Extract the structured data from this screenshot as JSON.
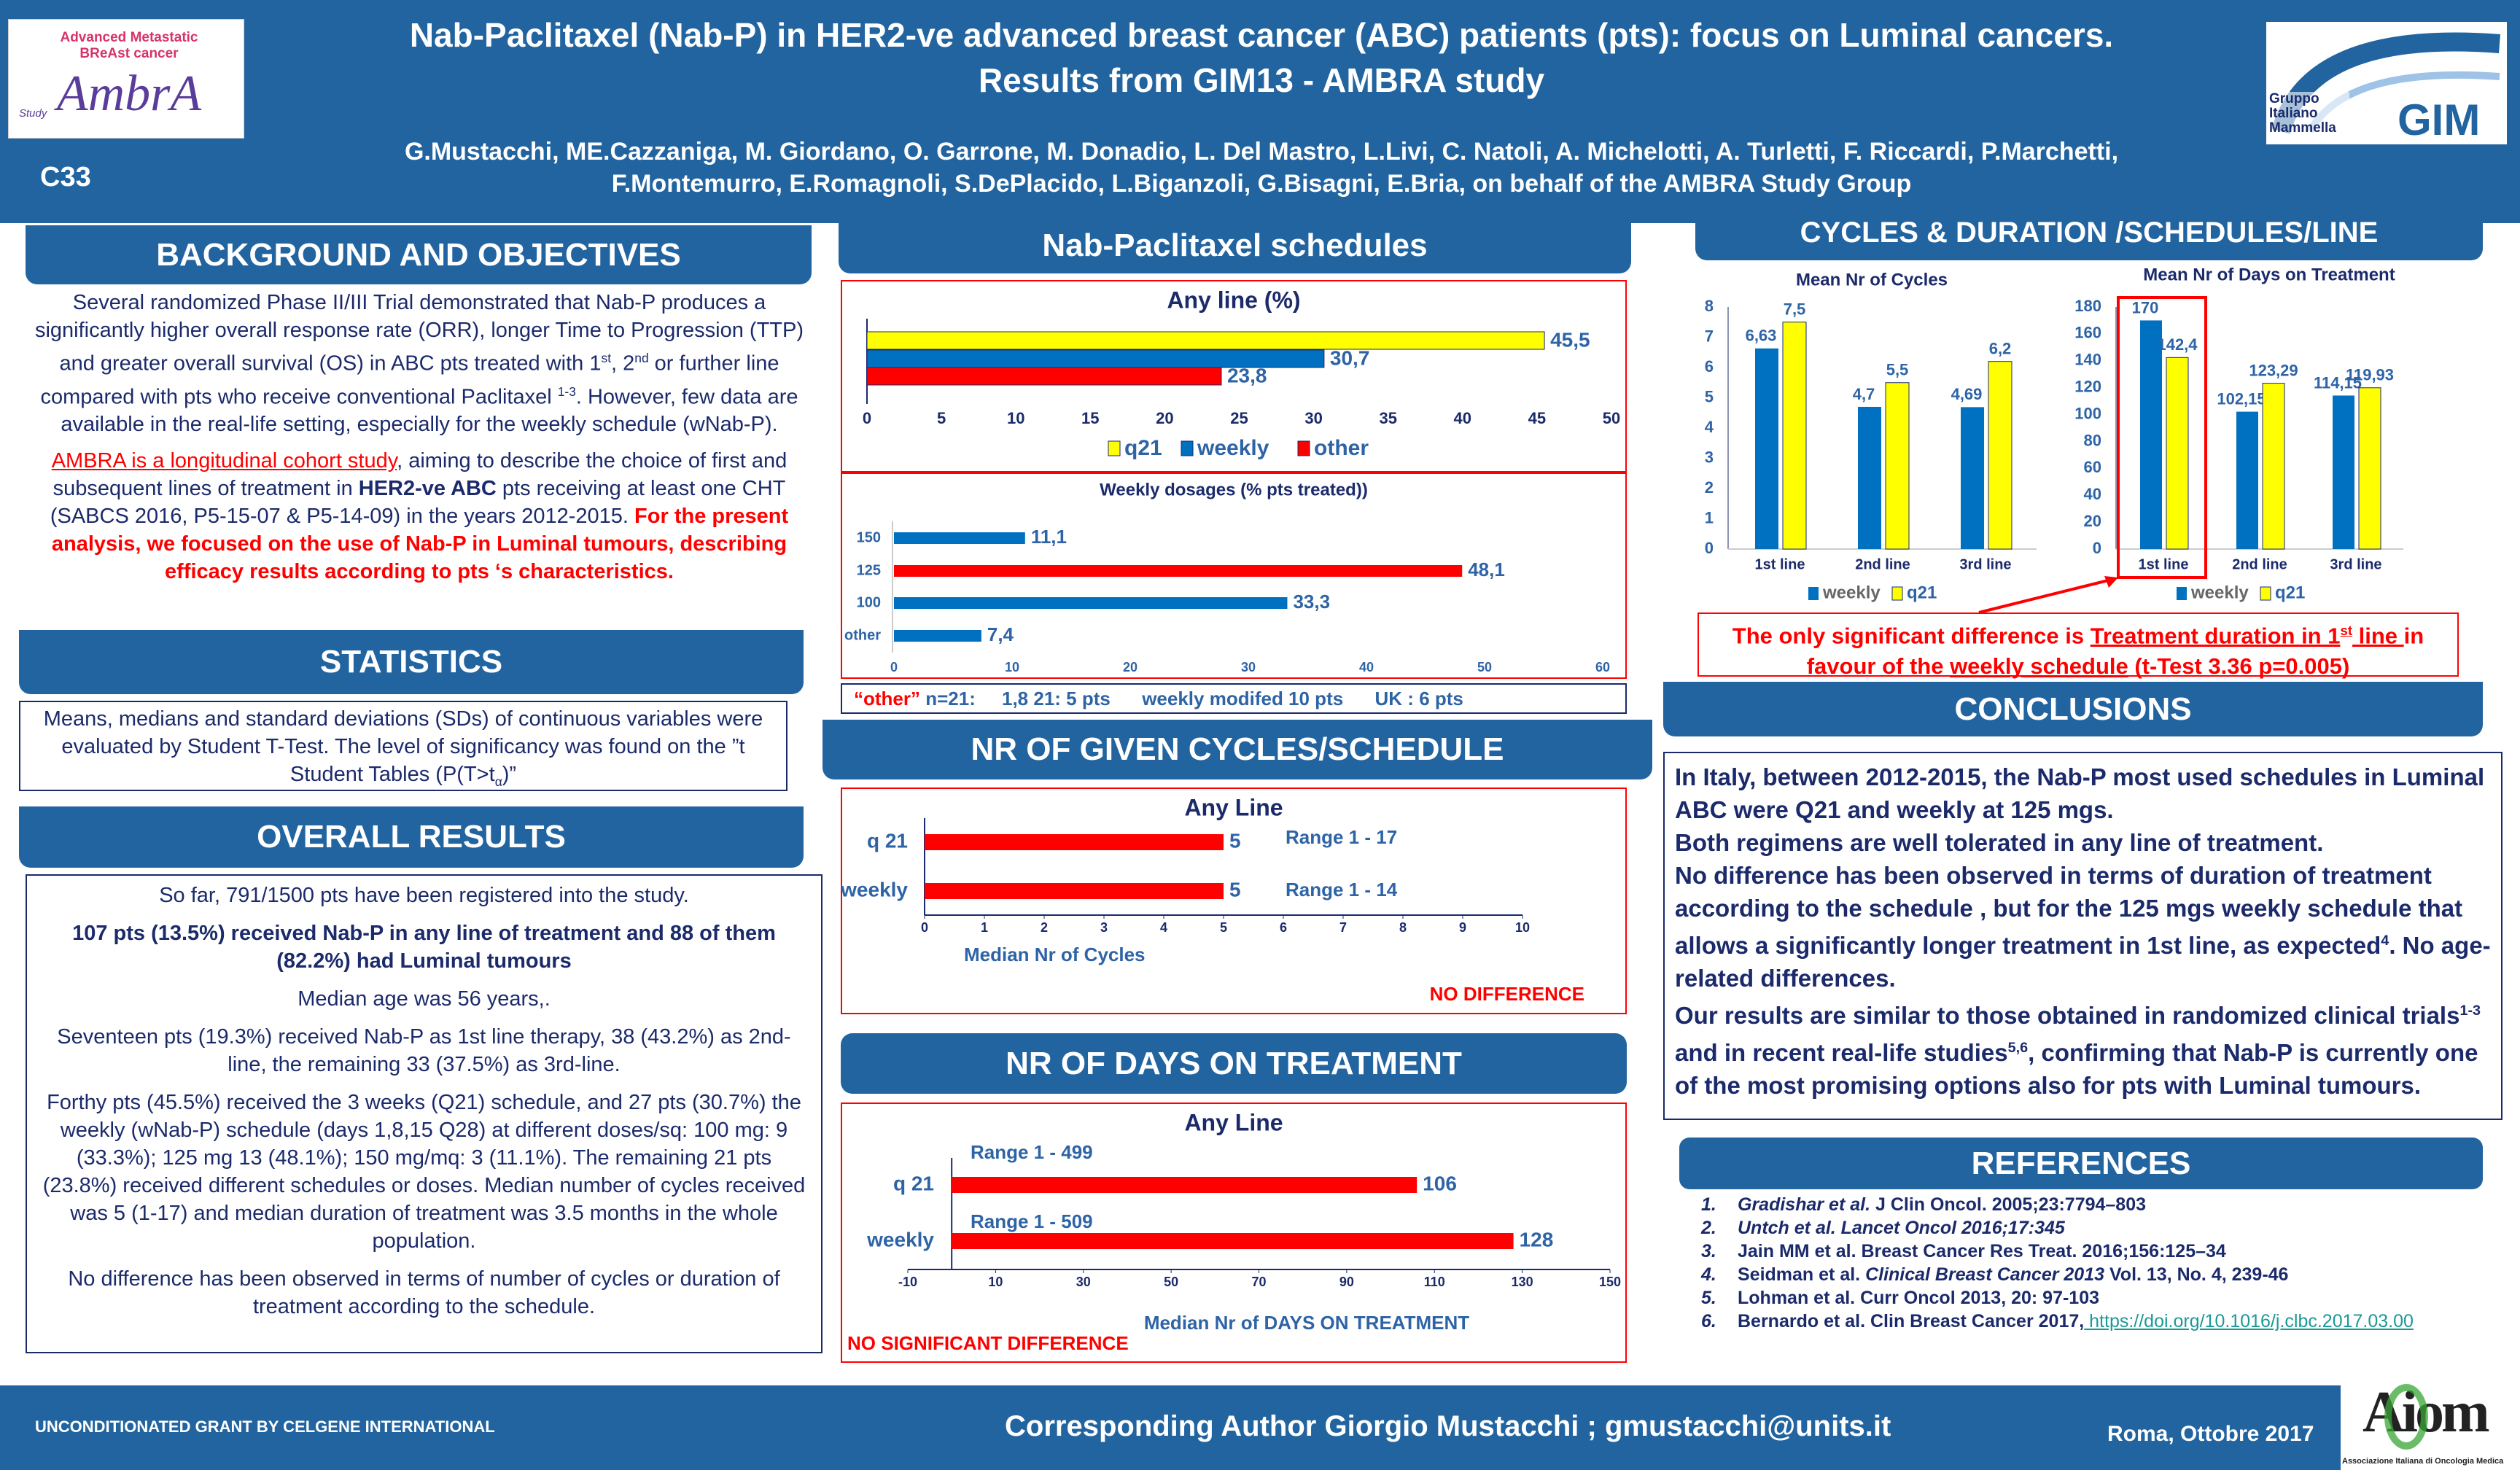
{
  "header": {
    "title_line1": "Nab-Paclitaxel (Nab-P) in HER2-ve advanced breast cancer (ABC) patients (pts): focus on Luminal cancers.",
    "title_line2": "Results from GIM13 - AMBRA study",
    "authors_line1": "G.Mustacchi, ME.Cazzaniga, M. Giordano, O. Garrone, M. Donadio, L. Del Mastro, L.Livi, C. Natoli, A. Michelotti, A. Turletti, F. Riccardi, P.Marchetti,",
    "authors_line2": "F.Montemurro, E.Romagnoli, S.DePlacido, L.Biganzoli, G.Bisagni, E.Bria, on behalf of the AMBRA Study Group",
    "poster_code": "C33",
    "logo_left": {
      "subtitle": "Advanced Metastatic BReAst cancer",
      "name": "AmbrA",
      "tag": "Study"
    },
    "logo_right": {
      "subtitle": "Gruppo Italiano Mammella",
      "name": "GIM"
    }
  },
  "background": {
    "heading": "BACKGROUND AND OBJECTIVES",
    "p1": [
      "Several randomized Phase II/III Trial demonstrated that Nab-P produces a significantly higher overall response rate (ORR), longer Time to Progression (TTP) and greater overall survival (OS) in ABC pts treated with 1",
      "st",
      ", 2",
      "nd",
      "  or further line compared with pts who receive conventional Paclitaxel ",
      "1-3",
      ". However, few data are available in the real-life setting, especially for the weekly schedule (wNab-P)."
    ],
    "p2": [
      "AMBRA is a longitudinal cohort study",
      ", aiming to describe the choice of first and subsequent lines of treatment in ",
      "HER2-ve ABC",
      " pts receiving at least one CHT (SABCS 2016, P5-15-07 & P5-14-09) in the years 2012-2015. ",
      "For the present analysis, we focused on the use of Nab-P in Luminal tumours, describing efficacy results according to pts ‘s characteristics."
    ]
  },
  "statistics": {
    "heading": "STATISTICS",
    "text": "Means, medians and standard deviations (SDs) of continuous variables were evaluated  by Student T-Test. The level of significancy was  found on the ”t Student Tables (P(T>t",
    "sub": "α",
    "tail": ")”"
  },
  "overall": {
    "heading": "OVERALL RESULTS",
    "paragraphs": [
      "So far, 791/1500 pts have been registered into the study.",
      "107 pts (13.5%) received Nab-P in any line of treatment and 88 of them (82.2%) had Luminal tumours",
      "Median age was 56 years,.",
      "Seventeen pts (19.3%) received Nab-P  as 1st line therapy, 38 (43.2%) as 2nd-line, the remaining 33 (37.5%) as 3rd-line.",
      "Forthy pts (45.5%) received the 3 weeks (Q21) schedule, and 27 pts (30.7%) the weekly (wNab-P) schedule (days 1,8,15 Q28) at different doses/sq: 100 mg: 9 (33.3%); 125 mg 13 (48.1%); 150 mg/mq: 3 (11.1%). The remaining 21 pts (23.8%) received different schedules or doses. Median number of cycles received was 5 (1-17) and median duration of treatment was 3.5 months in the whole population.",
      "No difference has been observed in terms of number of cycles or duration of treatment according to the schedule."
    ]
  },
  "schedules": {
    "heading": "Nab-Paclitaxel schedules",
    "other_note": {
      "label": "“other”",
      "n": " n=21:",
      "i1": "1,8 21: 5 pts",
      "i2": "weekly modifed 10 pts",
      "i3": "UK : 6 pts"
    }
  },
  "cycles_section": {
    "heading": "NR OF GIVEN CYCLES/SCHEDULE"
  },
  "days_section": {
    "heading": "NR OF DAYS ON TREATMENT"
  },
  "right": {
    "heading": "CYCLES & DURATION /SCHEDULES/LINE",
    "note": [
      "The only significant difference is ",
      "Treatment duration in 1",
      "st",
      " line ",
      " in favour of the ",
      "weekly schedule",
      " (t-Test 3.36  p=0.005)"
    ]
  },
  "conclusions": {
    "heading": "CONCLUSIONS",
    "segments": [
      "In Italy, between 2012-2015, the Nab-P most used schedules in Luminal ABC were Q21 and weekly at 125 mgs.",
      "Both regimens are well tolerated in any line of treatment.",
      "No difference has been observed in terms of duration of treatment according to the schedule , but for the 125 mgs weekly schedule  that allows a significantly longer treatment in 1st  line, as expected",
      "4",
      ". No age-related differences.",
      "Our results are similar to those obtained in randomized clinical trials",
      "1-3",
      " and in recent real-life studies",
      "5,6",
      ",  confirming that Nab-P is currently one of the most promising options also for pts with Luminal tumours."
    ]
  },
  "references": {
    "heading": "REFERENCES",
    "items": [
      {
        "n": "1.",
        "italic": "Gradishar et al.",
        "text": " J Clin Oncol. 2005;23:7794–803"
      },
      {
        "n": "2.",
        "italic": "Untch et al. Lancet Oncol 2016;17:345",
        "text": ""
      },
      {
        "n": "3.",
        "italic": "",
        "text": "Jain MM et al. Breast Cancer Res Treat. 2016;156:125–34"
      },
      {
        "n": "4.",
        "pre": "Seidman et al. ",
        "italic": "Clinical Breast Cancer 2013",
        "text": " Vol. 13, No. 4, 239-46"
      },
      {
        "n": "5.",
        "italic": "",
        "text": "Lohman et al. Curr Oncol 2013, 20: 97-103"
      },
      {
        "n": "6.",
        "italic": "",
        "text": "Bernardo et al. Clin Breast Cancer 2017,",
        "link": " https://doi.org/10.1016/j.clbc.2017.03.00"
      }
    ]
  },
  "footer": {
    "grant": "UNCONDITIONATED GRANT BY CELGENE INTERNATIONAL",
    "contact": "Corresponding Author Giorgio Mustacchi ; gmustacchi@units.it",
    "place_date": "Roma, Ottobre 2017",
    "logo_name": "Aiom",
    "logo_subtitle": "Associazione Italiana di Oncologia Medica"
  },
  "colors": {
    "brand_blue": "#2264a0",
    "weekly": "#0070c0",
    "q21": "#ffff00",
    "other": "#ff0000",
    "text_navy": "#1b2a6b",
    "label_blue": "#2e64a6"
  },
  "chart_data": [
    {
      "type": "bar",
      "orientation": "horizontal",
      "title": "Any line (%)",
      "series": [
        {
          "name": "q21",
          "values": [
            45.5
          ],
          "labels": [
            "45,5"
          ],
          "color": "#ffff00"
        },
        {
          "name": "weekly",
          "values": [
            30.7
          ],
          "labels": [
            "30,7"
          ],
          "color": "#0070c0"
        },
        {
          "name": "other",
          "values": [
            23.8
          ],
          "labels": [
            "23,8"
          ],
          "color": "#ff0000"
        }
      ],
      "xlim": [
        0,
        50
      ],
      "xticks": [
        0,
        5,
        10,
        15,
        20,
        25,
        30,
        35,
        40,
        45,
        50
      ],
      "legend": "bottom",
      "grid": false
    },
    {
      "type": "bar",
      "orientation": "horizontal",
      "title": "Weekly dosages  (% pts treated))",
      "categories": [
        "150",
        "125",
        "100",
        "other"
      ],
      "values": [
        11.1,
        48.1,
        33.3,
        7.4
      ],
      "labels": [
        "11,1",
        "48,1",
        "33,3",
        "7,4"
      ],
      "colors": [
        "#0070c0",
        "#ff0000",
        "#0070c0",
        "#0070c0"
      ],
      "xlim": [
        0,
        60
      ],
      "xticks": [
        0,
        10,
        20,
        30,
        40,
        50,
        60
      ],
      "grid": false
    },
    {
      "type": "bar",
      "orientation": "horizontal",
      "title": "Any Line",
      "categories": [
        "q 21",
        "weekly"
      ],
      "values": [
        5,
        5
      ],
      "labels": [
        "5",
        "5"
      ],
      "annotations": [
        "Range 1 - 17",
        "Range 1 - 14"
      ],
      "xlabel": "Median Nr of Cycles",
      "xlim": [
        0,
        10
      ],
      "xticks": [
        0,
        1,
        2,
        3,
        4,
        5,
        6,
        7,
        8,
        9,
        10
      ],
      "note": "NO DIFFERENCE",
      "color": "#ff0000",
      "grid": false
    },
    {
      "type": "bar",
      "orientation": "horizontal",
      "title": "Any Line",
      "categories": [
        "q 21",
        "weekly"
      ],
      "values": [
        106,
        128
      ],
      "labels": [
        "106",
        "128"
      ],
      "annotations": [
        "Range 1 - 499",
        "Range 1 - 509"
      ],
      "xlabel": "Median Nr of DAYS ON TREATMENT",
      "xlim": [
        -10,
        150
      ],
      "xticks": [
        -10,
        10,
        30,
        50,
        70,
        90,
        110,
        130,
        150
      ],
      "note": "NO SIGNIFICANT DIFFERENCE",
      "color": "#ff0000",
      "grid": false
    },
    {
      "type": "bar",
      "orientation": "vertical",
      "title": "Mean Nr of Cycles",
      "categories": [
        "1st line",
        "2nd line",
        "3rd line"
      ],
      "series": [
        {
          "name": "weekly",
          "values": [
            6.63,
            4.7,
            4.69
          ],
          "labels": [
            "6,63",
            "4,7",
            "4,69"
          ],
          "color": "#0070c0"
        },
        {
          "name": "q21",
          "values": [
            7.5,
            5.5,
            6.2
          ],
          "labels": [
            "7,5",
            "5,5",
            "6,2"
          ],
          "color": "#ffff00"
        }
      ],
      "ylim": [
        0,
        8
      ],
      "yticks": [
        0,
        1,
        2,
        3,
        4,
        5,
        6,
        7,
        8
      ],
      "legend": "bottom",
      "grid": false
    },
    {
      "type": "bar",
      "orientation": "vertical",
      "title": "Mean Nr of Days on Treatment",
      "categories": [
        "1st line",
        "2nd line",
        "3rd line"
      ],
      "series": [
        {
          "name": "weekly",
          "values": [
            170,
            102.15,
            114.15
          ],
          "labels": [
            "170",
            "102,15",
            "114,15"
          ],
          "color": "#0070c0"
        },
        {
          "name": "q21",
          "values": [
            142.4,
            123.29,
            119.93
          ],
          "labels": [
            "142,4",
            "123,29",
            "119,93"
          ],
          "color": "#ffff00"
        }
      ],
      "ylim": [
        0,
        180
      ],
      "yticks": [
        0,
        20,
        40,
        60,
        80,
        100,
        120,
        140,
        160,
        180
      ],
      "legend": "bottom",
      "highlight": "1st line",
      "grid": false
    }
  ]
}
